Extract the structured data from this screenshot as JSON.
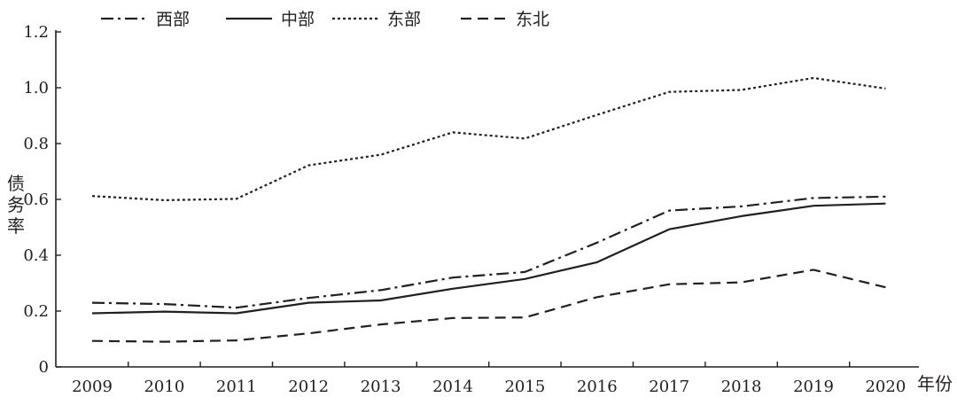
{
  "chart_data": {
    "type": "line",
    "categories": [
      "2009",
      "2010",
      "2011",
      "2012",
      "2013",
      "2014",
      "2015",
      "2016",
      "2017",
      "2018",
      "2019",
      "2020"
    ],
    "xlabel": "年份",
    "ylabel": "债务率",
    "ylim": [
      0,
      1.2
    ],
    "yticks": [
      "0",
      "0.2",
      "0.4",
      "0.6",
      "0.8",
      "1.0",
      "1.2"
    ],
    "legend_position": "top",
    "grid": false,
    "series": [
      {
        "name": "西部",
        "dash": "dash-dot",
        "values": [
          0.23,
          0.225,
          0.212,
          0.247,
          0.275,
          0.32,
          0.34,
          0.445,
          0.56,
          0.575,
          0.605,
          0.61
        ]
      },
      {
        "name": "中部",
        "dash": "solid",
        "values": [
          0.192,
          0.198,
          0.192,
          0.23,
          0.238,
          0.28,
          0.315,
          0.375,
          0.493,
          0.54,
          0.577,
          0.585
        ]
      },
      {
        "name": "东部",
        "dash": "dotted",
        "values": [
          0.612,
          0.597,
          0.602,
          0.722,
          0.76,
          0.84,
          0.818,
          0.903,
          0.985,
          0.992,
          1.035,
          0.997
        ]
      },
      {
        "name": "东北",
        "dash": "dashed",
        "values": [
          0.093,
          0.09,
          0.095,
          0.12,
          0.152,
          0.175,
          0.177,
          0.25,
          0.296,
          0.303,
          0.348,
          0.285
        ]
      }
    ]
  }
}
